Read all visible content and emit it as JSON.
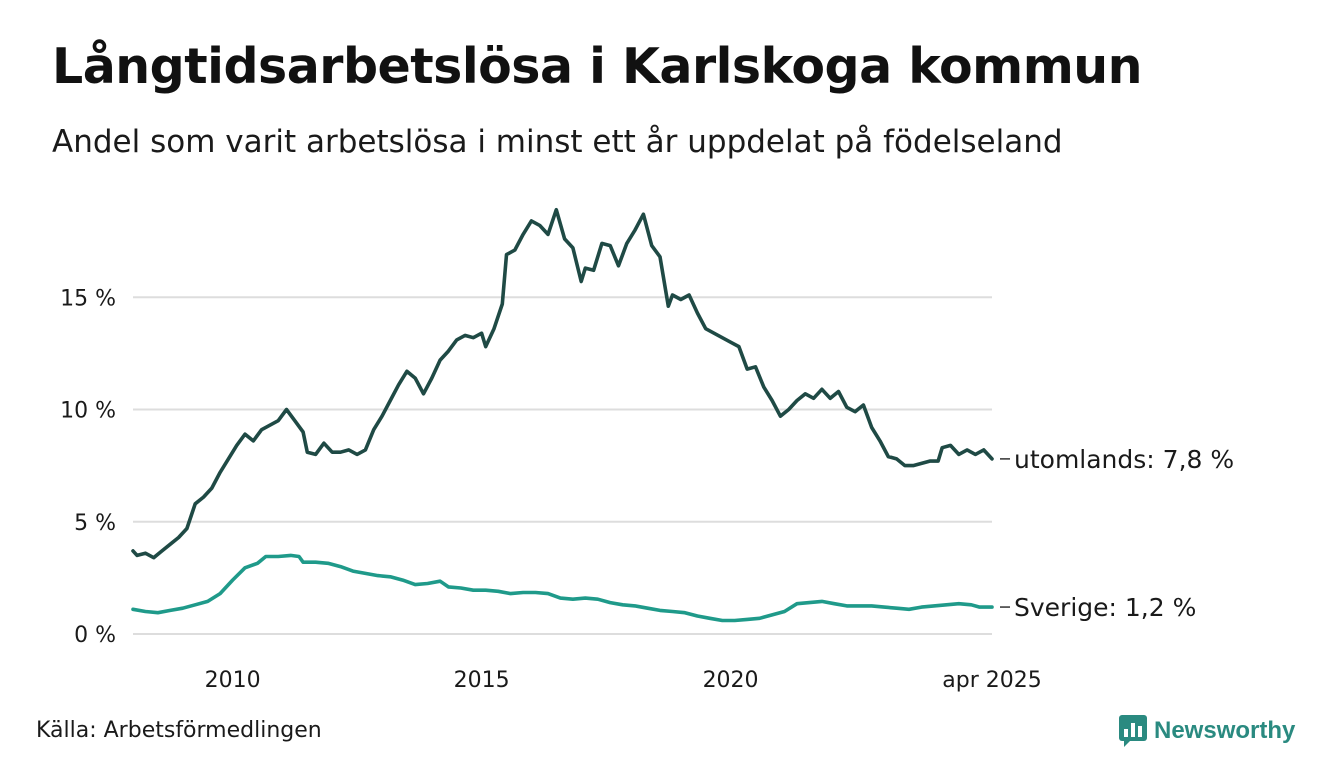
{
  "header": {
    "title": "Långtidsarbetslösa i Karlskoga kommun",
    "subtitle": "Andel som varit arbetslösa i minst ett år uppdelat på födelseland"
  },
  "footer": {
    "source": "Källa: Arbetsförmedlingen",
    "brand": "Newsworthy"
  },
  "colors": {
    "utomlands": "#1f4a45",
    "sverige": "#1f9a8a",
    "grid": "#dddddd",
    "brand": "#2a8a80"
  },
  "icons": {
    "brand_logo": "bar-chart-badge-icon"
  },
  "chart_data": {
    "type": "line",
    "x_range": [
      "2008-01",
      "2025-04"
    ],
    "ylim": [
      0,
      19
    ],
    "y_ticks": [
      {
        "value": 0,
        "label": "0 %"
      },
      {
        "value": 5,
        "label": "5 %"
      },
      {
        "value": 10,
        "label": "10 %"
      },
      {
        "value": 15,
        "label": "15 %"
      }
    ],
    "x_ticks": [
      {
        "date": "2010-01",
        "label": "2010"
      },
      {
        "date": "2015-01",
        "label": "2015"
      },
      {
        "date": "2020-01",
        "label": "2020"
      },
      {
        "date": "2025-04",
        "label": "apr 2025"
      }
    ],
    "grid": true,
    "series": [
      {
        "key": "utomlands",
        "name": "utomlands",
        "end_label": "utomlands: 7,8 %",
        "points": [
          [
            "2008-01",
            3.7
          ],
          [
            "2008-02",
            3.5
          ],
          [
            "2008-04",
            3.6
          ],
          [
            "2008-06",
            3.4
          ],
          [
            "2008-08",
            3.7
          ],
          [
            "2008-10",
            4.0
          ],
          [
            "2008-12",
            4.3
          ],
          [
            "2009-02",
            4.7
          ],
          [
            "2009-04",
            5.8
          ],
          [
            "2009-06",
            6.1
          ],
          [
            "2009-08",
            6.5
          ],
          [
            "2009-10",
            7.2
          ],
          [
            "2009-12",
            7.8
          ],
          [
            "2010-02",
            8.4
          ],
          [
            "2010-04",
            8.9
          ],
          [
            "2010-06",
            8.6
          ],
          [
            "2010-08",
            9.1
          ],
          [
            "2010-10",
            9.3
          ],
          [
            "2010-12",
            9.5
          ],
          [
            "2011-02",
            10.0
          ],
          [
            "2011-04",
            9.5
          ],
          [
            "2011-06",
            9.0
          ],
          [
            "2011-07",
            8.1
          ],
          [
            "2011-09",
            8.0
          ],
          [
            "2011-11",
            8.5
          ],
          [
            "2012-01",
            8.1
          ],
          [
            "2012-03",
            8.1
          ],
          [
            "2012-05",
            8.2
          ],
          [
            "2012-07",
            8.0
          ],
          [
            "2012-09",
            8.2
          ],
          [
            "2012-11",
            9.1
          ],
          [
            "2013-01",
            9.7
          ],
          [
            "2013-03",
            10.4
          ],
          [
            "2013-05",
            11.1
          ],
          [
            "2013-07",
            11.7
          ],
          [
            "2013-09",
            11.4
          ],
          [
            "2013-11",
            10.7
          ],
          [
            "2014-01",
            11.4
          ],
          [
            "2014-03",
            12.2
          ],
          [
            "2014-05",
            12.6
          ],
          [
            "2014-07",
            13.1
          ],
          [
            "2014-09",
            13.3
          ],
          [
            "2014-11",
            13.2
          ],
          [
            "2015-01",
            13.4
          ],
          [
            "2015-02",
            12.8
          ],
          [
            "2015-04",
            13.6
          ],
          [
            "2015-06",
            14.7
          ],
          [
            "2015-07",
            16.9
          ],
          [
            "2015-09",
            17.1
          ],
          [
            "2015-11",
            17.8
          ],
          [
            "2016-01",
            18.4
          ],
          [
            "2016-03",
            18.2
          ],
          [
            "2016-05",
            17.8
          ],
          [
            "2016-07",
            18.9
          ],
          [
            "2016-09",
            17.6
          ],
          [
            "2016-11",
            17.2
          ],
          [
            "2017-01",
            15.7
          ],
          [
            "2017-02",
            16.3
          ],
          [
            "2017-04",
            16.2
          ],
          [
            "2017-06",
            17.4
          ],
          [
            "2017-08",
            17.3
          ],
          [
            "2017-10",
            16.4
          ],
          [
            "2017-12",
            17.4
          ],
          [
            "2018-02",
            18.0
          ],
          [
            "2018-04",
            18.7
          ],
          [
            "2018-06",
            17.3
          ],
          [
            "2018-08",
            16.8
          ],
          [
            "2018-10",
            14.6
          ],
          [
            "2018-11",
            15.1
          ],
          [
            "2019-01",
            14.9
          ],
          [
            "2019-03",
            15.1
          ],
          [
            "2019-05",
            14.3
          ],
          [
            "2019-07",
            13.6
          ],
          [
            "2019-09",
            13.4
          ],
          [
            "2019-11",
            13.2
          ],
          [
            "2020-01",
            13.0
          ],
          [
            "2020-03",
            12.8
          ],
          [
            "2020-05",
            11.8
          ],
          [
            "2020-07",
            11.9
          ],
          [
            "2020-09",
            11.0
          ],
          [
            "2020-11",
            10.4
          ],
          [
            "2021-01",
            9.7
          ],
          [
            "2021-03",
            10.0
          ],
          [
            "2021-05",
            10.4
          ],
          [
            "2021-07",
            10.7
          ],
          [
            "2021-09",
            10.5
          ],
          [
            "2021-11",
            10.9
          ],
          [
            "2022-01",
            10.5
          ],
          [
            "2022-03",
            10.8
          ],
          [
            "2022-05",
            10.1
          ],
          [
            "2022-07",
            9.9
          ],
          [
            "2022-09",
            10.2
          ],
          [
            "2022-11",
            9.2
          ],
          [
            "2023-01",
            8.6
          ],
          [
            "2023-03",
            7.9
          ],
          [
            "2023-05",
            7.8
          ],
          [
            "2023-07",
            7.5
          ],
          [
            "2023-09",
            7.5
          ],
          [
            "2023-11",
            7.6
          ],
          [
            "2024-01",
            7.7
          ],
          [
            "2024-03",
            7.7
          ],
          [
            "2024-04",
            8.3
          ],
          [
            "2024-06",
            8.4
          ],
          [
            "2024-08",
            8.0
          ],
          [
            "2024-10",
            8.2
          ],
          [
            "2024-12",
            8.0
          ],
          [
            "2025-02",
            8.2
          ],
          [
            "2025-04",
            7.8
          ]
        ]
      },
      {
        "key": "sverige",
        "name": "Sverige",
        "end_label": "Sverige: 1,2 %",
        "points": [
          [
            "2008-01",
            1.1
          ],
          [
            "2008-04",
            1.0
          ],
          [
            "2008-07",
            0.95
          ],
          [
            "2008-10",
            1.05
          ],
          [
            "2009-01",
            1.15
          ],
          [
            "2009-04",
            1.3
          ],
          [
            "2009-07",
            1.45
          ],
          [
            "2009-10",
            1.8
          ],
          [
            "2010-01",
            2.4
          ],
          [
            "2010-04",
            2.95
          ],
          [
            "2010-07",
            3.15
          ],
          [
            "2010-09",
            3.45
          ],
          [
            "2010-12",
            3.45
          ],
          [
            "2011-03",
            3.5
          ],
          [
            "2011-05",
            3.45
          ],
          [
            "2011-06",
            3.2
          ],
          [
            "2011-09",
            3.2
          ],
          [
            "2011-12",
            3.15
          ],
          [
            "2012-03",
            3.0
          ],
          [
            "2012-06",
            2.8
          ],
          [
            "2012-09",
            2.7
          ],
          [
            "2012-12",
            2.6
          ],
          [
            "2013-03",
            2.55
          ],
          [
            "2013-06",
            2.4
          ],
          [
            "2013-09",
            2.2
          ],
          [
            "2013-12",
            2.25
          ],
          [
            "2014-03",
            2.35
          ],
          [
            "2014-05",
            2.1
          ],
          [
            "2014-08",
            2.05
          ],
          [
            "2014-11",
            1.95
          ],
          [
            "2015-02",
            1.95
          ],
          [
            "2015-05",
            1.9
          ],
          [
            "2015-08",
            1.8
          ],
          [
            "2015-11",
            1.85
          ],
          [
            "2016-02",
            1.85
          ],
          [
            "2016-05",
            1.8
          ],
          [
            "2016-08",
            1.6
          ],
          [
            "2016-11",
            1.55
          ],
          [
            "2017-02",
            1.6
          ],
          [
            "2017-05",
            1.55
          ],
          [
            "2017-08",
            1.4
          ],
          [
            "2017-11",
            1.3
          ],
          [
            "2018-02",
            1.25
          ],
          [
            "2018-05",
            1.15
          ],
          [
            "2018-08",
            1.05
          ],
          [
            "2018-11",
            1.0
          ],
          [
            "2019-02",
            0.95
          ],
          [
            "2019-05",
            0.8
          ],
          [
            "2019-08",
            0.7
          ],
          [
            "2019-11",
            0.6
          ],
          [
            "2020-02",
            0.6
          ],
          [
            "2020-05",
            0.65
          ],
          [
            "2020-08",
            0.7
          ],
          [
            "2020-11",
            0.85
          ],
          [
            "2021-02",
            1.0
          ],
          [
            "2021-05",
            1.35
          ],
          [
            "2021-08",
            1.4
          ],
          [
            "2021-11",
            1.45
          ],
          [
            "2022-02",
            1.35
          ],
          [
            "2022-05",
            1.25
          ],
          [
            "2022-08",
            1.25
          ],
          [
            "2022-11",
            1.25
          ],
          [
            "2023-02",
            1.2
          ],
          [
            "2023-05",
            1.15
          ],
          [
            "2023-08",
            1.1
          ],
          [
            "2023-11",
            1.2
          ],
          [
            "2024-02",
            1.25
          ],
          [
            "2024-05",
            1.3
          ],
          [
            "2024-08",
            1.35
          ],
          [
            "2024-11",
            1.3
          ],
          [
            "2025-01",
            1.2
          ],
          [
            "2025-04",
            1.2
          ]
        ]
      }
    ]
  }
}
